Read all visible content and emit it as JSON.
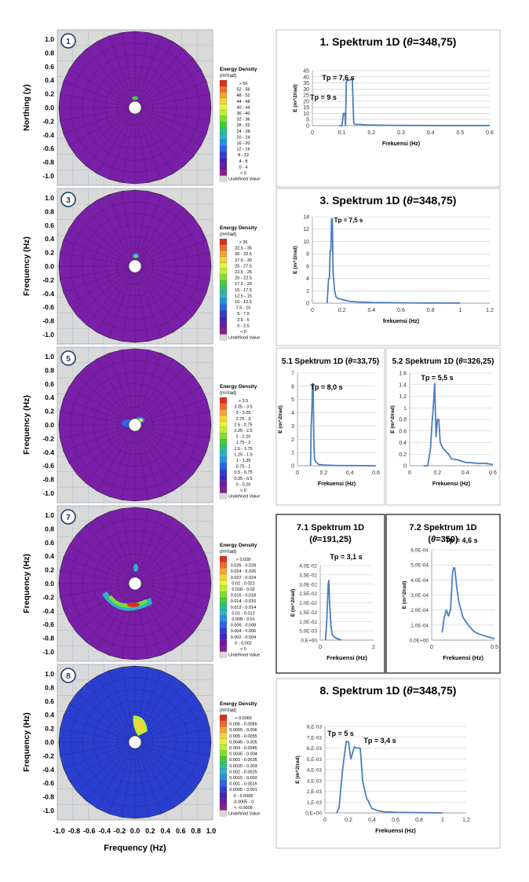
{
  "polar_common": {
    "ylabel_north": "Northing (y)",
    "ylabel_freq": "Frequency (Hz)",
    "xlabel": "Frequency (Hz)",
    "ticks": [
      "-1.0",
      "-0.8",
      "-0.6",
      "-0.4",
      "-0.2",
      "0.0",
      "0.2",
      "0.4",
      "0.6",
      "0.8",
      "1.0"
    ],
    "yticks": [
      "1.0",
      "0.8",
      "0.6",
      "0.4",
      "0.2",
      "0.0",
      "-0.2",
      "-0.4",
      "-0.6",
      "-0.8",
      "-1.0"
    ],
    "legend_title": "Energy Density",
    "legend_unit": "(m²/rad)",
    "background_color": "#7a1fa8",
    "undefined_label": "Undefined Value"
  },
  "polar_panels": [
    {
      "badge": "1",
      "ylabel": "ylabel_north",
      "legend": [
        "> 56",
        "52 - 56",
        "48 - 52",
        "44 - 48",
        "40 - 44",
        "36 - 40",
        "32 - 36",
        "28 - 32",
        "24 - 28",
        "20 - 24",
        "16 - 20",
        "12 - 16",
        "8 - 12",
        "4 - 8",
        "0 - 4",
        "< 0"
      ]
    },
    {
      "badge": "3",
      "ylabel": "ylabel_freq",
      "legend": [
        "> 35",
        "32.5 - 35",
        "30 - 32.5",
        "27.5 - 30",
        "25 - 27.5",
        "22.5 - 25",
        "20 - 22.5",
        "17.5 - 20",
        "15 - 17.5",
        "12.5 - 15",
        "10 - 12.5",
        "7.5 - 10",
        "5 - 7.5",
        "2.5 - 5",
        "0 - 2.5",
        "< 0"
      ]
    },
    {
      "badge": "5",
      "ylabel": "ylabel_freq",
      "legend": [
        "> 3.5",
        "3.25 - 3.5",
        "3 - 3.25",
        "2.75 - 3",
        "2.5 - 2.75",
        "2.25 - 2.5",
        "2 - 2.25",
        "1.75 - 2",
        "1.5 - 1.75",
        "1.25 - 1.5",
        "1 - 1.25",
        "0.75 - 1",
        "0.5 - 0.75",
        "0.25 - 0.5",
        "0 - 0.25",
        "< 0"
      ]
    },
    {
      "badge": "7",
      "ylabel": "ylabel_freq",
      "legend": [
        "> 0.028",
        "0.026 - 0.028",
        "0.024 - 0.026",
        "0.022 - 0.024",
        "0.02 - 0.022",
        "0.018 - 0.02",
        "0.016 - 0.018",
        "0.014 - 0.016",
        "0.012 - 0.014",
        "0.01 - 0.012",
        "0.008 - 0.01",
        "0.006 - 0.008",
        "0.004 - 0.006",
        "0.002 - 0.004",
        "0 - 0.002",
        "< 0"
      ]
    },
    {
      "badge": "8",
      "ylabel": "ylabel_freq",
      "legend": [
        "> 0.0065",
        "0.006 - 0.0065",
        "0.0055 - 0.006",
        "0.005 - 0.0055",
        "0.0045 - 0.005",
        "0.004 - 0.0045",
        "0.0035 - 0.004",
        "0.003 - 0.0035",
        "0.0025 - 0.003",
        "0.002 - 0.0025",
        "0.0015 - 0.002",
        "0.001 - 0.0015",
        "0.0005 - 0.001",
        "0 - 0.0005",
        "-0.0005 - 0",
        "< -0.0005"
      ]
    }
  ],
  "legend_colors": [
    "#d7301f",
    "#f06a2a",
    "#f6a33b",
    "#f7d238",
    "#e8f33a",
    "#b9ef38",
    "#7ddd35",
    "#3fcf3a",
    "#2dbf84",
    "#29b4c8",
    "#2a8fe0",
    "#2f63e0",
    "#2e3fcf",
    "#3f27b4",
    "#6b1aa6",
    "#8a1e8c"
  ],
  "chart_data": [
    {
      "type": "line",
      "title_html": "1. Spektrum 1D (<tspan font-style='italic'>θ</tspan>=348,75)",
      "title": "1. Spektrum 1D (θ=348,75)",
      "xlabel": "Frekuensi (Hz)",
      "ylabel": "E (m^2/rad)",
      "xlim": [
        0,
        0.6
      ],
      "ylim": [
        0,
        45
      ],
      "xticks": [
        "0",
        "0.1",
        "0.2",
        "0.3",
        "0.4",
        "0.5",
        "0.6"
      ],
      "yticks": [
        "0",
        "5",
        "10",
        "15",
        "20",
        "25",
        "30",
        "35",
        "40",
        "45"
      ],
      "x": [
        0.09,
        0.1,
        0.105,
        0.11,
        0.112,
        0.115,
        0.118,
        0.125,
        0.13,
        0.135,
        0.14,
        0.145,
        0.15,
        0.16,
        0.18,
        0.2,
        0.25,
        0.3,
        0.4,
        0.5,
        0.6
      ],
      "y": [
        0,
        0,
        10,
        10,
        0,
        36,
        37,
        37,
        38,
        38,
        2,
        1,
        1,
        1,
        0.5,
        0.5,
        0.3,
        0.2,
        0.1,
        0.1,
        0.1
      ],
      "annotations": [
        "Tp = 7,6 s",
        "Tp = 9 s"
      ]
    },
    {
      "type": "line",
      "title_html": "3. Spektrum 1D (<tspan font-style='italic'>θ</tspan>=348,75)",
      "title": "3. Spektrum 1D (θ=348,75)",
      "xlabel": "frekuensi (Hz)",
      "ylabel": "E (m^2/rad)",
      "xlim": [
        0,
        1.2
      ],
      "ylim": [
        0,
        14
      ],
      "xticks": [
        "0",
        "0.2",
        "0.4",
        "0.6",
        "0.8",
        "1",
        "1.2"
      ],
      "yticks": [
        "0",
        "2",
        "4",
        "6",
        "8",
        "10",
        "12",
        "14"
      ],
      "x": [
        0.1,
        0.11,
        0.115,
        0.12,
        0.125,
        0.13,
        0.135,
        0.14,
        0.15,
        0.16,
        0.17,
        0.2,
        0.25,
        0.3,
        0.4,
        0.6,
        0.8,
        1.0
      ],
      "y": [
        0,
        4,
        4,
        8.5,
        8.5,
        13.7,
        13.7,
        5,
        2,
        1,
        0.8,
        0.6,
        0.3,
        0.2,
        0.1,
        0.05,
        0.03,
        0.02
      ],
      "annotations": [
        "Tp = 7,5 s"
      ]
    },
    {
      "type": "line",
      "title_html": "5.1 Spektrum 1D (<tspan font-style='italic'>θ</tspan>=33,75)",
      "title": "5.1 Spektrum 1D (θ=33,75)",
      "xlabel": "Frekuensi (Hz)",
      "ylabel": "E (m^2/rad)",
      "xlim": [
        0,
        0.6
      ],
      "ylim": [
        0,
        7
      ],
      "xticks": [
        "0",
        "0.2",
        "0.4",
        "0.6"
      ],
      "yticks": [
        "0",
        "1",
        "2",
        "3",
        "4",
        "5",
        "6",
        "7"
      ],
      "x": [
        0.1,
        0.105,
        0.11,
        0.115,
        0.12,
        0.125,
        0.13,
        0.14,
        0.16,
        0.2,
        0.3,
        0.4,
        0.6
      ],
      "y": [
        0,
        3,
        4,
        6.2,
        6.2,
        2,
        0.5,
        0.3,
        0.1,
        0.05,
        0.02,
        0.01,
        0
      ],
      "annotations": [
        "Tp = 8,0 s"
      ]
    },
    {
      "type": "line",
      "title_html": "5.2 Spektrum 1D (<tspan font-style='italic'>θ</tspan>=326,25)",
      "title": "5.2 Spektrum 1D (θ=326,25)",
      "xlabel": "Frekuensi (Hz)",
      "ylabel": "E (m^2/rad)",
      "xlim": [
        0,
        0.6
      ],
      "ylim": [
        0,
        1.6
      ],
      "xticks": [
        "0",
        "0.2",
        "0.4",
        "0.6"
      ],
      "yticks": [
        "0",
        "0.2",
        "0.4",
        "0.6",
        "0.8",
        "1",
        "1.2",
        "1.4",
        "1.6"
      ],
      "x": [
        0.1,
        0.13,
        0.15,
        0.16,
        0.17,
        0.18,
        0.19,
        0.2,
        0.21,
        0.22,
        0.24,
        0.26,
        0.28,
        0.3,
        0.35,
        0.4,
        0.45,
        0.5,
        0.55,
        0.6
      ],
      "y": [
        0,
        0,
        0.3,
        0.7,
        1.0,
        1.42,
        0.5,
        0.8,
        0.8,
        0.4,
        0.3,
        0.25,
        0.2,
        0.12,
        0.1,
        0.06,
        0.05,
        0.04,
        0.04,
        0.02
      ],
      "annotations": [
        "Tp = 5,5 s"
      ]
    },
    {
      "type": "line",
      "title_html": "7.1 Spektrum 1D|(<tspan font-style='italic'>θ</tspan>=191,25)",
      "title": "7.1 Spektrum 1D (θ=191,25)",
      "xlabel": "Frekuensi (Hz)",
      "ylabel": "E (m^2/rad)",
      "xlim": [
        0,
        2
      ],
      "ylim": [
        0,
        0.04
      ],
      "xticks": [
        "0",
        "",
        "",
        "",
        "2"
      ],
      "yticks": [
        "0,E+00",
        "5,0E-03",
        "1,0E-02",
        "1,5E-02",
        "2,0E-02",
        "2,5E-02",
        "3,0E-02",
        "3,5E-02",
        "4,0E-02"
      ],
      "x": [
        0.2,
        0.25,
        0.3,
        0.32,
        0.35,
        0.4,
        0.45,
        0.5,
        0.6,
        0.8
      ],
      "y": [
        0,
        0.012,
        0.03,
        0.032,
        0.02,
        0.008,
        0.003,
        0.002,
        0.001,
        0
      ],
      "annotations": [
        "Tp = 3,1 s"
      ]
    },
    {
      "type": "line",
      "title_html": "7.2 Spektrum 1D|(<tspan font-style='italic'>θ</tspan>=350)",
      "title": "7.2 Spektrum 1D (θ=350)",
      "xlabel": "Frekuensi (Hz)",
      "ylabel": "E (m^2/rad)",
      "xlim": [
        0,
        0.6
      ],
      "ylim": [
        0,
        0.0006
      ],
      "xticks": [
        "0",
        "",
        "0.5"
      ],
      "yticks": [
        "0,0E+00",
        "1,0E-04",
        "2,0E-04",
        "3,0E-04",
        "4,0E-04",
        "5,0E-04",
        "6,0E-04"
      ],
      "x": [
        0.1,
        0.12,
        0.14,
        0.16,
        0.18,
        0.2,
        0.21,
        0.22,
        0.24,
        0.26,
        0.28,
        0.3,
        0.35,
        0.4,
        0.45,
        0.5,
        0.55,
        0.6
      ],
      "y": [
        5e-05,
        0.00015,
        0.0002,
        0.00016,
        0.0002,
        0.00045,
        0.00048,
        0.00048,
        0.00035,
        0.00025,
        0.0002,
        0.00015,
        0.0001,
        6e-05,
        4e-05,
        3e-05,
        2e-05,
        1e-05
      ],
      "annotations": [
        "Tp = 4,6 s"
      ]
    },
    {
      "type": "line",
      "title_html": "8. Spektrum 1D (<tspan font-style='italic'>θ</tspan>=348,75)",
      "title": "8. Spektrum 1D (θ=348,75)",
      "xlabel": "Frekuensi (Hz)",
      "ylabel": "E (m^2/rad)",
      "xlim": [
        0,
        1.2
      ],
      "ylim": [
        0,
        0.008
      ],
      "xticks": [
        "0",
        "0,2",
        "0,4",
        "0,6",
        "0,8",
        "1",
        "1,2"
      ],
      "yticks": [
        "0,E+00",
        "1,E-03",
        "2,E-03",
        "3,E-03",
        "4,E-03",
        "5,E-03",
        "6,E-03",
        "7,E-03",
        "8,E-03"
      ],
      "x": [
        0.1,
        0.12,
        0.15,
        0.18,
        0.2,
        0.22,
        0.25,
        0.27,
        0.3,
        0.32,
        0.35,
        0.38,
        0.4,
        0.45,
        0.5,
        0.6,
        0.8,
        1.0
      ],
      "y": [
        0,
        0.0005,
        0.004,
        0.0066,
        0.0066,
        0.005,
        0.0061,
        0.006,
        0.006,
        0.003,
        0.0015,
        0.0008,
        0.0004,
        0.0002,
        0.0001,
        5e-05,
        2e-05,
        0
      ],
      "annotations": [
        "Tp = 5 s",
        "Tp = 3,4 s"
      ]
    }
  ]
}
